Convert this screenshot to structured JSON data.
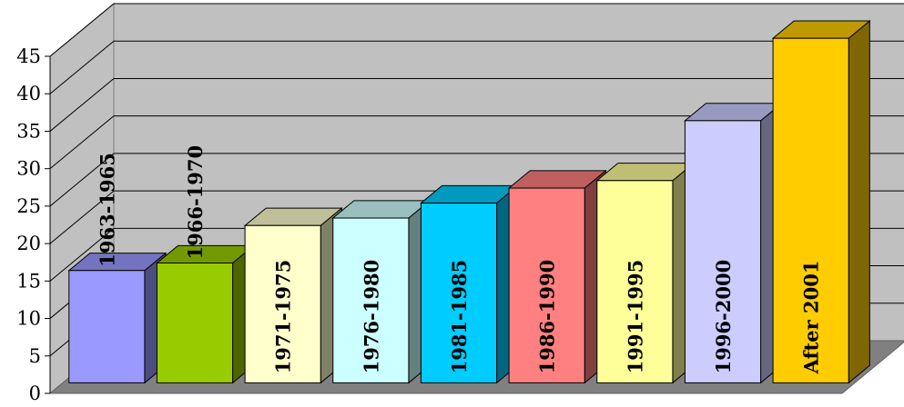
{
  "chart_data": {
    "type": "bar",
    "categories": [
      "1963-1965",
      "1966-1970",
      "1971-1975",
      "1976-1980",
      "1981-1985",
      "1986-1990",
      "1991-1995",
      "1996-2000",
      "After 2001"
    ],
    "values": [
      15,
      16,
      21,
      22,
      24,
      26,
      27,
      35,
      46
    ],
    "colors": [
      "#9999FF",
      "#99CC00",
      "#FFFFCC",
      "#CCFFFF",
      "#00CCFF",
      "#FF8080",
      "#FFFF99",
      "#CCCCFF",
      "#FFCC00"
    ],
    "ylim": [
      0,
      45
    ],
    "yticks": [
      "0",
      "5",
      "10",
      "15",
      "20",
      "25",
      "30",
      "35",
      "40",
      "45"
    ],
    "title": "",
    "xlabel": "",
    "ylabel": "",
    "grid": true,
    "legend": "none",
    "style": "3d-column",
    "background_color": "#C0C0C0",
    "floor_color": "#808080",
    "gridline_color": "#000000"
  }
}
